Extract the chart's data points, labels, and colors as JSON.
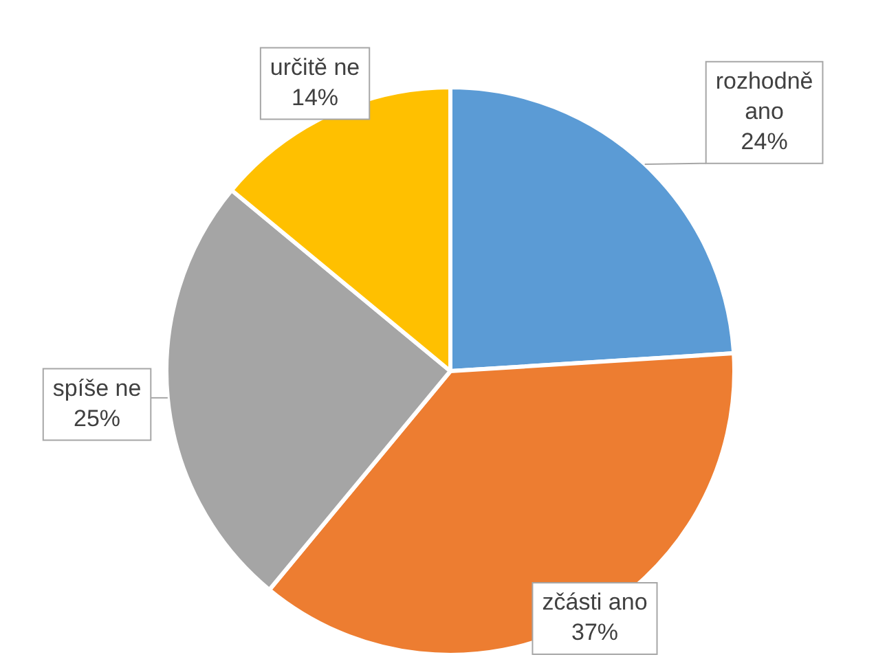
{
  "chart_data": {
    "type": "pie",
    "categories": [
      "rozhodně ano",
      "zčásti ano",
      "spíše ne",
      "určitě ne"
    ],
    "values": [
      24,
      37,
      25,
      14
    ],
    "colors": [
      "#5b9bd5",
      "#ed7d31",
      "#a5a5a5",
      "#ffc000"
    ],
    "value_labels": [
      "24%",
      "37%",
      "25%",
      "14%"
    ],
    "legend": false
  }
}
